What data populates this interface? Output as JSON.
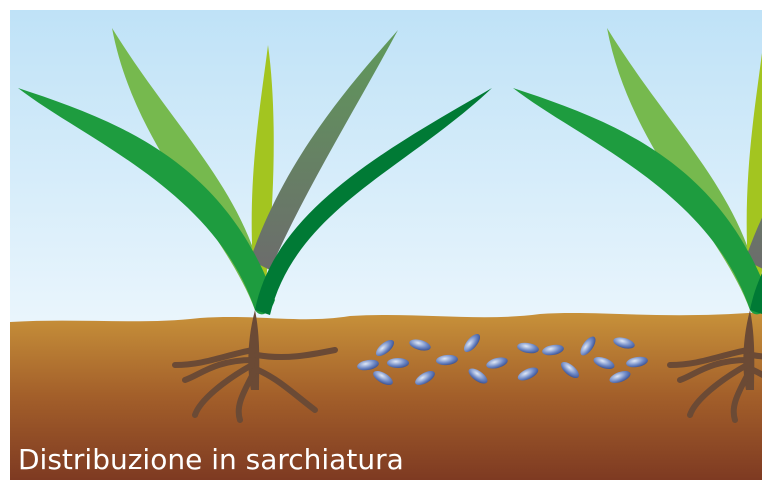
{
  "caption": "Distribuzione in sarchiatura"
}
